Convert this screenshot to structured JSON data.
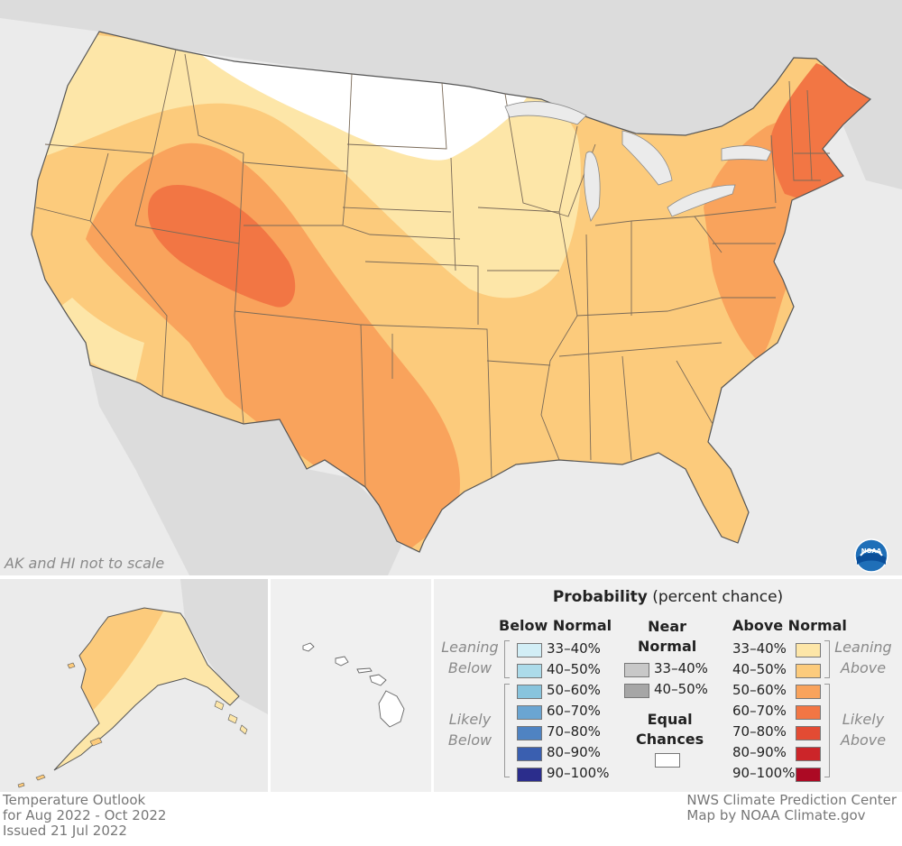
{
  "map_note": "AK and HI not to scale",
  "footer_left": [
    "Temperature Outlook",
    "for Aug 2022 - Oct 2022",
    "Issued 21 Jul 2022"
  ],
  "footer_right": [
    "NWS Climate Prediction Center",
    "Map by NOAA Climate.gov"
  ],
  "logo_text": "NOAA",
  "legend": {
    "title_bold": "Probability",
    "title_rest": " (percent chance)",
    "below": {
      "heading": "Below Normal",
      "leaning_label": [
        "Leaning",
        "Below"
      ],
      "likely_label": [
        "Likely",
        "Below"
      ],
      "items": [
        {
          "label": "33–40%",
          "color": "#d2eef6"
        },
        {
          "label": "40–50%",
          "color": "#acdbea"
        },
        {
          "label": "50–60%",
          "color": "#88c4dd"
        },
        {
          "label": "60–70%",
          "color": "#6aa5d2"
        },
        {
          "label": "70–80%",
          "color": "#4f83c2"
        },
        {
          "label": "80–90%",
          "color": "#3a5fb0"
        },
        {
          "label": "90–100%",
          "color": "#2b2d8c"
        }
      ]
    },
    "near": {
      "heading": [
        "Near",
        "Normal"
      ],
      "items": [
        {
          "label": "33–40%",
          "color": "#c8c8c8"
        },
        {
          "label": "40–50%",
          "color": "#a6a6a6"
        }
      ],
      "equal_heading": [
        "Equal",
        "Chances"
      ],
      "equal_color": "#ffffff"
    },
    "above": {
      "heading": "Above Normal",
      "leaning_label": [
        "Leaning",
        "Above"
      ],
      "likely_label": [
        "Likely",
        "Above"
      ],
      "items": [
        {
          "label": "33–40%",
          "color": "#fde6a8"
        },
        {
          "label": "40–50%",
          "color": "#fccb7c"
        },
        {
          "label": "50–60%",
          "color": "#f9a35c"
        },
        {
          "label": "60–70%",
          "color": "#f27644"
        },
        {
          "label": "70–80%",
          "color": "#e34b33"
        },
        {
          "label": "80–90%",
          "color": "#cc2529"
        },
        {
          "label": "90–100%",
          "color": "#ac0a24"
        }
      ]
    }
  },
  "colors": {
    "background": "#ebebeb",
    "neighbor_land": "#dcdcdc",
    "equal_chances": "#ffffff",
    "above_33_40": "#fde6a8",
    "above_40_50": "#fccb7c",
    "above_50_60": "#f9a35c",
    "above_60_70": "#f27644",
    "state_border": "#7a6a58"
  }
}
